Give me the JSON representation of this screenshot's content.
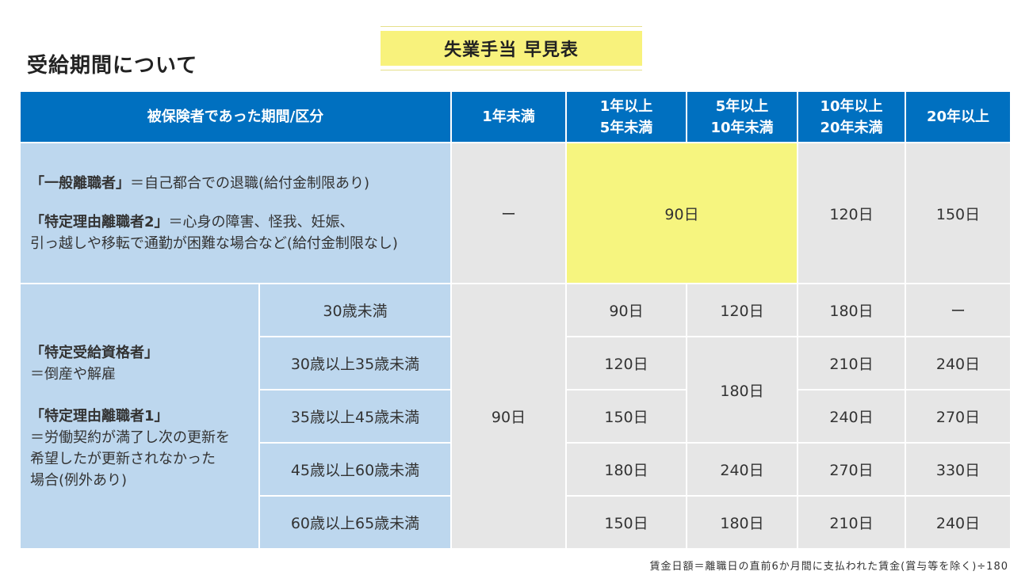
{
  "section_title": "受給期間について",
  "banner_title": "失業手当 早見表",
  "header": {
    "category": "被保険者であった期間/区分",
    "col1": "1年未満",
    "col2_line1": "1年以上",
    "col2_line2": "5年未満",
    "col3_line1": "5年以上",
    "col3_line2": "10年未満",
    "col4_line1": "10年以上",
    "col4_line2": "20年未満",
    "col5": "20年以上"
  },
  "general": {
    "label1_bold": "「一般離職者」",
    "label1_rest": "＝自己都合での退職(給付金制限あり)",
    "label2_bold": "「特定理由離職者2」",
    "label2_rest": "＝心身の障害、怪我、妊娠、",
    "label2_line2": "引っ越しや移転で通勤が困難な場合など(給付金制限なし)",
    "under1": "ー",
    "y1_10": "90日",
    "y10_20": "120日",
    "y20": "150日"
  },
  "specific": {
    "label1_bold": "「特定受給資格者」",
    "label1_rest": "＝倒産や解雇",
    "label2_bold": "「特定理由離職者1」",
    "label2_line1": "＝労働契約が満了し次の更新を",
    "label2_line2": "希望したが更新されなかった",
    "label2_line3": "場合(例外あり)",
    "under1": "90日",
    "merged_5_10": "180日",
    "rows": [
      {
        "age": "30歳未満",
        "y1_5": "90日",
        "y5_10": "120日",
        "y10_20": "180日",
        "y20": "ー"
      },
      {
        "age": "30歳以上35歳未満",
        "y1_5": "120日",
        "y10_20": "210日",
        "y20": "240日"
      },
      {
        "age": "35歳以上45歳未満",
        "y1_5": "150日",
        "y10_20": "240日",
        "y20": "270日"
      },
      {
        "age": "45歳以上60歳未満",
        "y1_5": "180日",
        "y5_10": "240日",
        "y10_20": "270日",
        "y20": "330日"
      },
      {
        "age": "60歳以上65歳未満",
        "y1_5": "150日",
        "y5_10": "180日",
        "y10_20": "210日",
        "y20": "240日"
      }
    ]
  },
  "footnote": "賃金日額＝離職日の直前6か月間に支払われた賃金(賞与等を除く)÷180"
}
